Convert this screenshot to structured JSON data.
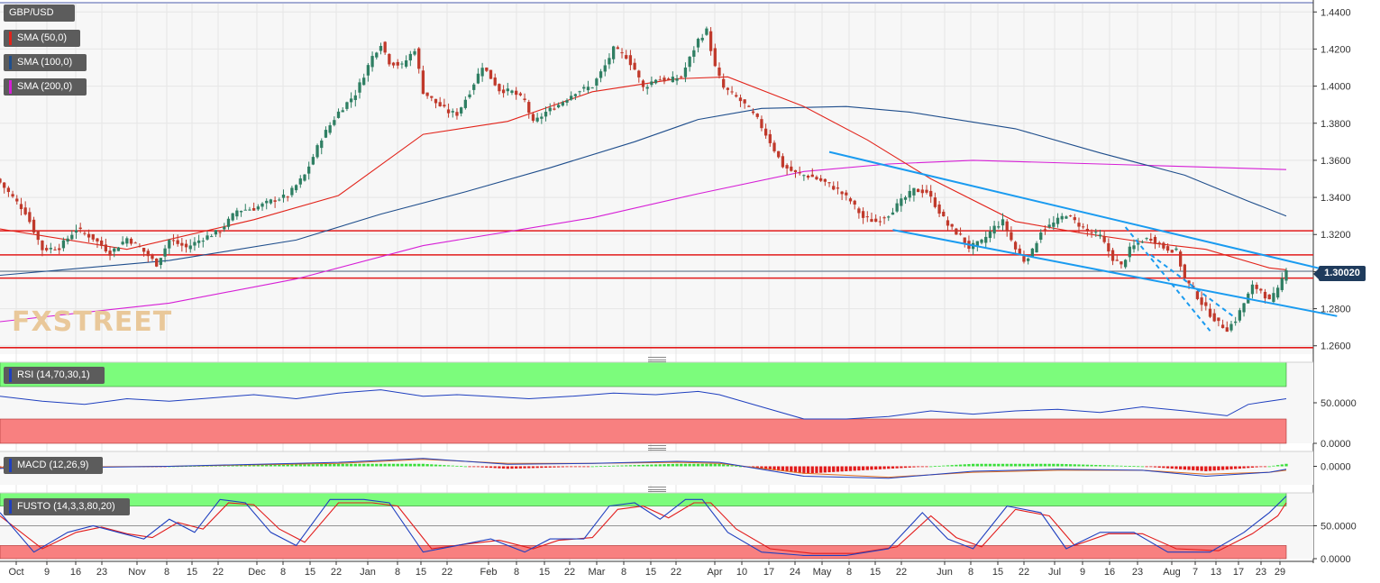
{
  "symbol_label": "GBP/USD",
  "indicators": {
    "sma50": "SMA (50,0)",
    "sma100": "SMA (100,0)",
    "sma200": "SMA (200,0)",
    "rsi": "RSI (14,70,30,1)",
    "macd": "MACD (12,26,9)",
    "fusto": "FUSTO (14,3,3,80,20)"
  },
  "colors": {
    "bull": "#2f7f63",
    "bear": "#c0392b",
    "sma50": "#e2231a",
    "sma100": "#1f4e8c",
    "sma200": "#d61fd6",
    "trend": "#1a9bf0",
    "level": "#e21b1b",
    "rsi": "#1f3fbf",
    "green_zone": "#7cfc7c",
    "red_zone": "#f88080"
  },
  "current_price": "1.30020",
  "watermark": {
    "a": "FX",
    "b": "STREET"
  },
  "chart_data": {
    "type": "candlestick",
    "price_axis": {
      "ticks": [
        "1.4400",
        "1.4200",
        "1.4000",
        "1.3800",
        "1.3600",
        "1.3400",
        "1.3200",
        "1.3000",
        "1.2800",
        "1.2600"
      ],
      "ylim": [
        1.2555,
        1.4445
      ]
    },
    "x_ticks": [
      "Oct",
      "9",
      "16",
      "23",
      "Nov",
      "8",
      "15",
      "22",
      "Dec",
      "8",
      "15",
      "22",
      "Jan",
      "8",
      "15",
      "22",
      "Feb",
      "8",
      "15",
      "22",
      "Mar",
      "8",
      "15",
      "22",
      "Apr",
      "10",
      "17",
      "24",
      "May",
      "8",
      "15",
      "22",
      "Jun",
      "8",
      "15",
      "22",
      "Jul",
      "9",
      "16",
      "23",
      "Aug",
      "7",
      "13",
      "17",
      "23",
      "29"
    ],
    "horizontal_levels": [
      1.322,
      1.309,
      1.2965,
      1.259
    ],
    "close_path": [
      [
        0,
        1.348
      ],
      [
        6,
        1.332
      ],
      [
        10,
        1.312
      ],
      [
        14,
        1.313
      ],
      [
        18,
        1.323
      ],
      [
        22,
        1.318
      ],
      [
        26,
        1.31
      ],
      [
        30,
        1.318
      ],
      [
        33,
        1.313
      ],
      [
        37,
        1.304
      ],
      [
        40,
        1.317
      ],
      [
        44,
        1.313
      ],
      [
        48,
        1.318
      ],
      [
        52,
        1.322
      ],
      [
        56,
        1.333
      ],
      [
        60,
        1.334
      ],
      [
        64,
        1.338
      ],
      [
        68,
        1.341
      ],
      [
        72,
        1.352
      ],
      [
        76,
        1.372
      ],
      [
        80,
        1.386
      ],
      [
        84,
        1.396
      ],
      [
        88,
        1.416
      ],
      [
        90,
        1.423
      ],
      [
        92,
        1.413
      ],
      [
        95,
        1.411
      ],
      [
        98,
        1.42
      ],
      [
        100,
        1.397
      ],
      [
        103,
        1.391
      ],
      [
        106,
        1.386
      ],
      [
        108,
        1.385
      ],
      [
        111,
        1.397
      ],
      [
        114,
        1.411
      ],
      [
        118,
        1.398
      ],
      [
        121,
        1.397
      ],
      [
        124,
        1.392
      ],
      [
        126,
        1.38
      ],
      [
        129,
        1.386
      ],
      [
        132,
        1.39
      ],
      [
        136,
        1.397
      ],
      [
        140,
        1.4
      ],
      [
        143,
        1.411
      ],
      [
        145,
        1.42
      ],
      [
        148,
        1.416
      ],
      [
        150,
        1.409
      ],
      [
        152,
        1.399
      ],
      [
        155,
        1.404
      ],
      [
        158,
        1.403
      ],
      [
        161,
        1.405
      ],
      [
        163,
        1.415
      ],
      [
        165,
        1.425
      ],
      [
        167,
        1.43
      ],
      [
        169,
        1.41
      ],
      [
        171,
        1.399
      ],
      [
        174,
        1.394
      ],
      [
        176,
        1.39
      ],
      [
        179,
        1.382
      ],
      [
        182,
        1.37
      ],
      [
        185,
        1.357
      ],
      [
        188,
        1.353
      ],
      [
        192,
        1.351
      ],
      [
        195,
        1.348
      ],
      [
        198,
        1.344
      ],
      [
        201,
        1.338
      ],
      [
        204,
        1.329
      ],
      [
        207,
        1.327
      ],
      [
        210,
        1.331
      ],
      [
        213,
        1.338
      ],
      [
        216,
        1.344
      ],
      [
        219,
        1.343
      ],
      [
        221,
        1.336
      ],
      [
        224,
        1.325
      ],
      [
        227,
        1.319
      ],
      [
        229,
        1.313
      ],
      [
        232,
        1.316
      ],
      [
        235,
        1.324
      ],
      [
        237,
        1.327
      ],
      [
        240,
        1.312
      ],
      [
        242,
        1.306
      ],
      [
        244,
        1.311
      ],
      [
        246,
        1.322
      ],
      [
        249,
        1.326
      ],
      [
        252,
        1.331
      ],
      [
        254,
        1.327
      ],
      [
        257,
        1.322
      ],
      [
        260,
        1.319
      ],
      [
        263,
        1.307
      ],
      [
        265,
        1.303
      ],
      [
        267,
        1.312
      ],
      [
        270,
        1.317
      ],
      [
        272,
        1.318
      ],
      [
        275,
        1.313
      ],
      [
        278,
        1.311
      ],
      [
        280,
        1.296
      ],
      [
        282,
        1.29
      ],
      [
        284,
        1.283
      ],
      [
        286,
        1.277
      ],
      [
        288,
        1.272
      ],
      [
        290,
        1.269
      ],
      [
        292,
        1.274
      ],
      [
        294,
        1.283
      ],
      [
        296,
        1.292
      ],
      [
        298,
        1.29
      ],
      [
        300,
        1.284
      ],
      [
        302,
        1.29
      ],
      [
        304,
        1.302
      ]
    ],
    "sma50": [
      [
        0,
        1.323
      ],
      [
        30,
        1.312
      ],
      [
        60,
        1.328
      ],
      [
        80,
        1.341
      ],
      [
        100,
        1.374
      ],
      [
        120,
        1.381
      ],
      [
        140,
        1.397
      ],
      [
        160,
        1.404
      ],
      [
        172,
        1.405
      ],
      [
        190,
        1.389
      ],
      [
        205,
        1.371
      ],
      [
        220,
        1.35
      ],
      [
        240,
        1.327
      ],
      [
        255,
        1.321
      ],
      [
        270,
        1.316
      ],
      [
        285,
        1.312
      ],
      [
        300,
        1.302
      ],
      [
        304,
        1.301
      ]
    ],
    "sma100": [
      [
        0,
        1.298
      ],
      [
        40,
        1.306
      ],
      [
        70,
        1.317
      ],
      [
        90,
        1.331
      ],
      [
        110,
        1.343
      ],
      [
        130,
        1.356
      ],
      [
        150,
        1.37
      ],
      [
        165,
        1.382
      ],
      [
        180,
        1.388
      ],
      [
        200,
        1.389
      ],
      [
        215,
        1.386
      ],
      [
        240,
        1.377
      ],
      [
        260,
        1.364
      ],
      [
        280,
        1.352
      ],
      [
        295,
        1.338
      ],
      [
        304,
        1.33
      ]
    ],
    "sma200": [
      [
        0,
        1.273
      ],
      [
        40,
        1.283
      ],
      [
        70,
        1.296
      ],
      [
        100,
        1.314
      ],
      [
        140,
        1.329
      ],
      [
        165,
        1.342
      ],
      [
        190,
        1.354
      ],
      [
        210,
        1.358
      ],
      [
        230,
        1.36
      ],
      [
        260,
        1.358
      ],
      [
        290,
        1.356
      ],
      [
        304,
        1.355
      ]
    ],
    "trend_lines": [
      {
        "style": "solid",
        "from": [
          196,
          1.3645
        ],
        "to": [
          316,
          1.2995
        ]
      },
      {
        "style": "solid",
        "from": [
          211,
          1.3225
        ],
        "to": [
          316,
          1.276
        ]
      },
      {
        "style": "dashed",
        "from": [
          266,
          1.324
        ],
        "to": [
          286,
          1.268
        ]
      },
      {
        "style": "dashed",
        "from": [
          272,
          1.309
        ],
        "to": [
          292,
          1.275
        ]
      }
    ],
    "rsi": {
      "ticks": [
        "50.0000",
        "0.0000"
      ],
      "ylim": [
        0,
        100
      ],
      "overbought": 70,
      "oversold": 30,
      "values": [
        [
          0,
          58
        ],
        [
          10,
          52
        ],
        [
          20,
          48
        ],
        [
          30,
          55
        ],
        [
          40,
          52
        ],
        [
          50,
          56
        ],
        [
          60,
          60
        ],
        [
          70,
          55
        ],
        [
          80,
          62
        ],
        [
          90,
          66
        ],
        [
          100,
          58
        ],
        [
          108,
          60
        ],
        [
          115,
          58
        ],
        [
          125,
          55
        ],
        [
          135,
          58
        ],
        [
          145,
          62
        ],
        [
          155,
          60
        ],
        [
          165,
          64
        ],
        [
          170,
          60
        ],
        [
          180,
          45
        ],
        [
          190,
          30
        ],
        [
          200,
          30
        ],
        [
          210,
          33
        ],
        [
          220,
          40
        ],
        [
          230,
          36
        ],
        [
          240,
          40
        ],
        [
          250,
          42
        ],
        [
          260,
          38
        ],
        [
          270,
          45
        ],
        [
          280,
          40
        ],
        [
          290,
          34
        ],
        [
          295,
          48
        ],
        [
          300,
          52
        ],
        [
          304,
          55
        ]
      ]
    },
    "macd": {
      "ticks": [
        "0.0000"
      ],
      "macd_line": [
        [
          0,
          -0.002
        ],
        [
          40,
          0.0
        ],
        [
          80,
          0.004
        ],
        [
          100,
          0.008
        ],
        [
          120,
          0.002
        ],
        [
          140,
          0.003
        ],
        [
          160,
          0.005
        ],
        [
          170,
          0.004
        ],
        [
          190,
          -0.01
        ],
        [
          210,
          -0.012
        ],
        [
          230,
          -0.005
        ],
        [
          250,
          -0.003
        ],
        [
          270,
          -0.004
        ],
        [
          285,
          -0.01
        ],
        [
          300,
          -0.006
        ],
        [
          304,
          -0.003
        ]
      ],
      "signal_line": [
        [
          0,
          -0.001
        ],
        [
          40,
          0.0
        ],
        [
          80,
          0.003
        ],
        [
          100,
          0.007
        ],
        [
          120,
          0.003
        ],
        [
          140,
          0.003
        ],
        [
          160,
          0.004
        ],
        [
          170,
          0.003
        ],
        [
          190,
          -0.007
        ],
        [
          210,
          -0.011
        ],
        [
          230,
          -0.006
        ],
        [
          250,
          -0.004
        ],
        [
          270,
          -0.004
        ],
        [
          285,
          -0.008
        ],
        [
          300,
          -0.006
        ],
        [
          304,
          -0.004
        ]
      ]
    },
    "fusto": {
      "ticks": [
        "50.0000",
        "0.0000"
      ],
      "ylim": [
        0,
        100
      ],
      "overbought": 80,
      "oversold": 20,
      "k": [
        [
          0,
          70
        ],
        [
          8,
          10
        ],
        [
          16,
          40
        ],
        [
          22,
          50
        ],
        [
          28,
          40
        ],
        [
          34,
          30
        ],
        [
          40,
          60
        ],
        [
          46,
          40
        ],
        [
          52,
          90
        ],
        [
          58,
          85
        ],
        [
          64,
          40
        ],
        [
          70,
          20
        ],
        [
          78,
          90
        ],
        [
          86,
          90
        ],
        [
          92,
          85
        ],
        [
          100,
          10
        ],
        [
          108,
          20
        ],
        [
          116,
          30
        ],
        [
          124,
          10
        ],
        [
          130,
          30
        ],
        [
          138,
          30
        ],
        [
          144,
          80
        ],
        [
          150,
          85
        ],
        [
          156,
          60
        ],
        [
          162,
          90
        ],
        [
          166,
          90
        ],
        [
          172,
          40
        ],
        [
          180,
          10
        ],
        [
          190,
          5
        ],
        [
          200,
          5
        ],
        [
          210,
          15
        ],
        [
          218,
          70
        ],
        [
          224,
          30
        ],
        [
          230,
          15
        ],
        [
          238,
          80
        ],
        [
          246,
          70
        ],
        [
          252,
          15
        ],
        [
          260,
          40
        ],
        [
          268,
          40
        ],
        [
          276,
          10
        ],
        [
          286,
          10
        ],
        [
          294,
          40
        ],
        [
          300,
          70
        ],
        [
          304,
          95
        ]
      ],
      "d": [
        [
          0,
          65
        ],
        [
          10,
          15
        ],
        [
          18,
          40
        ],
        [
          24,
          48
        ],
        [
          30,
          38
        ],
        [
          36,
          32
        ],
        [
          42,
          55
        ],
        [
          48,
          45
        ],
        [
          54,
          85
        ],
        [
          60,
          82
        ],
        [
          66,
          45
        ],
        [
          72,
          25
        ],
        [
          80,
          85
        ],
        [
          88,
          85
        ],
        [
          94,
          80
        ],
        [
          102,
          15
        ],
        [
          110,
          22
        ],
        [
          118,
          28
        ],
        [
          126,
          15
        ],
        [
          132,
          28
        ],
        [
          140,
          32
        ],
        [
          146,
          75
        ],
        [
          152,
          80
        ],
        [
          158,
          62
        ],
        [
          164,
          85
        ],
        [
          168,
          85
        ],
        [
          174,
          45
        ],
        [
          182,
          15
        ],
        [
          192,
          8
        ],
        [
          202,
          8
        ],
        [
          212,
          18
        ],
        [
          220,
          65
        ],
        [
          226,
          32
        ],
        [
          232,
          18
        ],
        [
          240,
          75
        ],
        [
          248,
          65
        ],
        [
          254,
          20
        ],
        [
          262,
          38
        ],
        [
          270,
          38
        ],
        [
          278,
          15
        ],
        [
          288,
          12
        ],
        [
          296,
          38
        ],
        [
          302,
          65
        ],
        [
          304,
          85
        ]
      ]
    }
  }
}
